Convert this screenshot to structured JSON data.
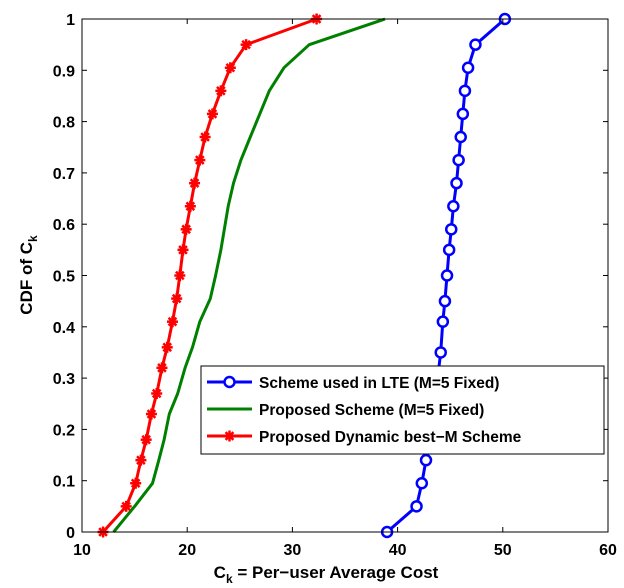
{
  "chart_data": {
    "type": "line",
    "xlabel": {
      "main": "C",
      "sub": "k",
      "rest": " = Per−user Average Cost"
    },
    "ylabel": {
      "main": "CDF of C",
      "sub": "k"
    },
    "xlim": [
      10,
      60
    ],
    "ylim": [
      0,
      1
    ],
    "xticks": [
      10,
      20,
      30,
      40,
      50,
      60
    ],
    "yticks": [
      0,
      0.1,
      0.2,
      0.3,
      0.4,
      0.5,
      0.6,
      0.7,
      0.8,
      0.9,
      1
    ],
    "grid": false,
    "legend_position": "lower-right",
    "series": [
      {
        "name": "Scheme used in LTE (M=5 Fixed)",
        "color": "#0000ff",
        "marker": "circle",
        "x": [
          39.0,
          41.8,
          42.3,
          42.7,
          43.0,
          43.4,
          43.8,
          44.1,
          44.3,
          44.5,
          44.7,
          44.9,
          45.1,
          45.3,
          45.6,
          45.8,
          46.0,
          46.2,
          46.4,
          46.7,
          47.4,
          50.2
        ],
        "y": [
          0.0,
          0.05,
          0.095,
          0.14,
          0.2,
          0.25,
          0.3,
          0.35,
          0.41,
          0.45,
          0.5,
          0.55,
          0.59,
          0.635,
          0.68,
          0.725,
          0.77,
          0.815,
          0.86,
          0.905,
          0.95,
          1.0
        ]
      },
      {
        "name": "Proposed Scheme (M=5 Fixed)",
        "color": "#008000",
        "marker": "none",
        "x": [
          13.0,
          15.0,
          16.7,
          17.3,
          17.8,
          18.3,
          19.1,
          19.8,
          20.5,
          21.2,
          22.2,
          22.7,
          23.2,
          23.9,
          24.4,
          25.1,
          26.0,
          27.8,
          29.2,
          31.6,
          38.8
        ],
        "y": [
          0.0,
          0.05,
          0.095,
          0.14,
          0.18,
          0.23,
          0.27,
          0.32,
          0.36,
          0.41,
          0.455,
          0.5,
          0.55,
          0.635,
          0.68,
          0.725,
          0.77,
          0.86,
          0.905,
          0.95,
          1.0
        ]
      },
      {
        "name": "Proposed Dynamic best−M Scheme",
        "color": "#ff0000",
        "marker": "asterisk",
        "x": [
          12.0,
          14.2,
          15.1,
          15.6,
          16.1,
          16.6,
          17.1,
          17.6,
          18.1,
          18.6,
          19.0,
          19.3,
          19.6,
          19.9,
          20.3,
          20.7,
          21.2,
          21.7,
          22.4,
          23.2,
          24.1,
          25.6,
          32.3
        ],
        "y": [
          0.0,
          0.05,
          0.095,
          0.14,
          0.18,
          0.23,
          0.27,
          0.32,
          0.36,
          0.41,
          0.455,
          0.5,
          0.55,
          0.59,
          0.635,
          0.68,
          0.725,
          0.77,
          0.815,
          0.86,
          0.905,
          0.95,
          1.0
        ]
      }
    ]
  }
}
